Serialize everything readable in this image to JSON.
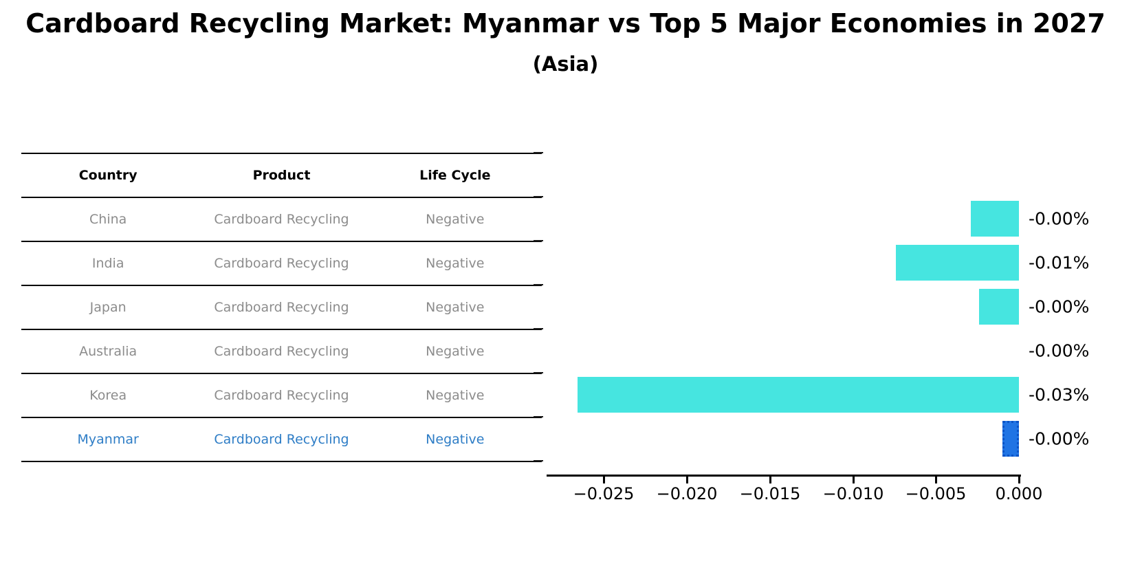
{
  "header": {
    "title": "Cardboard Recycling Market: Myanmar vs Top 5 Major Economies in 2027",
    "subtitle": "(Asia)"
  },
  "table": {
    "headers": [
      "Country",
      "Product",
      "Life Cycle"
    ],
    "rows": [
      {
        "country": "China",
        "product": "Cardboard Recycling",
        "life_cycle": "Negative",
        "highlight": false
      },
      {
        "country": "India",
        "product": "Cardboard Recycling",
        "life_cycle": "Negative",
        "highlight": false
      },
      {
        "country": "Japan",
        "product": "Cardboard Recycling",
        "life_cycle": "Negative",
        "highlight": false
      },
      {
        "country": "Australia",
        "product": "Cardboard Recycling",
        "life_cycle": "Negative",
        "highlight": false
      },
      {
        "country": "Korea",
        "product": "Cardboard Recycling",
        "life_cycle": "Negative",
        "highlight": false
      },
      {
        "country": "Myanmar",
        "product": "Cardboard Recycling",
        "life_cycle": "Negative",
        "highlight": true
      }
    ]
  },
  "chart_data": {
    "type": "bar",
    "orientation": "horizontal",
    "title": "Cardboard Recycling Market: Myanmar vs Top 5 Major Economies in 2027",
    "subtitle": "(Asia)",
    "categories": [
      "China",
      "India",
      "Japan",
      "Australia",
      "Korea",
      "Myanmar"
    ],
    "values": [
      -0.0029,
      -0.0074,
      -0.0024,
      -1e-05,
      -0.0266,
      -0.001
    ],
    "bar_labels": [
      "-0.00%",
      "-0.01%",
      "-0.00%",
      "-0.00%",
      "-0.03%",
      "-0.00%"
    ],
    "xlim": [
      -0.02845,
      0
    ],
    "x_ticks": [
      -0.025,
      -0.02,
      -0.015,
      -0.01,
      -0.005,
      0.0
    ],
    "x_tick_labels": [
      "−0.025",
      "−0.020",
      "−0.015",
      "−0.010",
      "−0.005",
      "0.000"
    ],
    "grid": false,
    "legend": null,
    "bar_color": "#46e5e0",
    "highlight_index": 5,
    "highlight_color": "#2074e4",
    "highlight_edge_color": "#0b53c6",
    "highlight_text_color": "#2e7dc6",
    "table_text_color": "#8c8c8c"
  }
}
